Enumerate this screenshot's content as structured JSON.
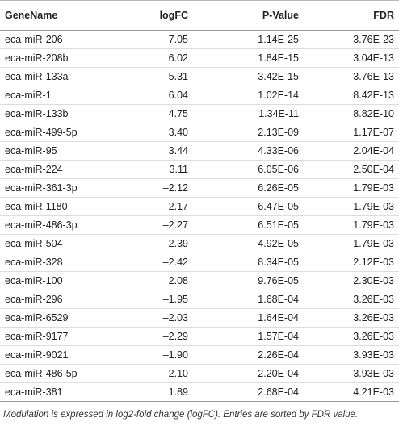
{
  "table": {
    "header": [
      "GeneName",
      "logFC",
      "P-Value",
      "FDR"
    ],
    "rows": [
      [
        "eca-miR-206",
        "7.05",
        "1.14E-25",
        "3.76E-23"
      ],
      [
        "eca-miR-208b",
        "6.02",
        "1.84E-15",
        "3.04E-13"
      ],
      [
        "eca-miR-133a",
        "5.31",
        "3.42E-15",
        "3.76E-13"
      ],
      [
        "eca-miR-1",
        "6.04",
        "1.02E-14",
        "8.42E-13"
      ],
      [
        "eca-miR-133b",
        "4.75",
        "1.34E-11",
        "8.82E-10"
      ],
      [
        "eca-miR-499-5p",
        "3.40",
        "2.13E-09",
        "1.17E-07"
      ],
      [
        "eca-miR-95",
        "3.44",
        "4.33E-06",
        "2.04E-04"
      ],
      [
        "eca-miR-224",
        "3.11",
        "6.05E-06",
        "2.50E-04"
      ],
      [
        "eca-miR-361-3p",
        "–2.12",
        "6.26E-05",
        "1.79E-03"
      ],
      [
        "eca-miR-1180",
        "–2.17",
        "6.47E-05",
        "1.79E-03"
      ],
      [
        "eca-miR-486-3p",
        "–2.27",
        "6.51E-05",
        "1.79E-03"
      ],
      [
        "eca-miR-504",
        "–2.39",
        "4.92E-05",
        "1.79E-03"
      ],
      [
        "eca-miR-328",
        "–2.42",
        "8.34E-05",
        "2.12E-03"
      ],
      [
        "eca-miR-100",
        "2.08",
        "9.76E-05",
        "2.30E-03"
      ],
      [
        "eca-miR-296",
        "–1.95",
        "1.68E-04",
        "3.26E-03"
      ],
      [
        "eca-miR-6529",
        "–2.03",
        "1.64E-04",
        "3.26E-03"
      ],
      [
        "eca-miR-9177",
        "–2.29",
        "1.57E-04",
        "3.26E-03"
      ],
      [
        "eca-miR-9021",
        "–1.90",
        "2.26E-04",
        "3.93E-03"
      ],
      [
        "eca-miR-486-5p",
        "–2.10",
        "2.20E-04",
        "3.93E-03"
      ],
      [
        "eca-miR-381",
        "1.89",
        "2.68E-04",
        "4.21E-03"
      ]
    ],
    "footnote": "Modulation is expressed in log2-fold change (logFC). Entries are sorted by FDR value."
  }
}
